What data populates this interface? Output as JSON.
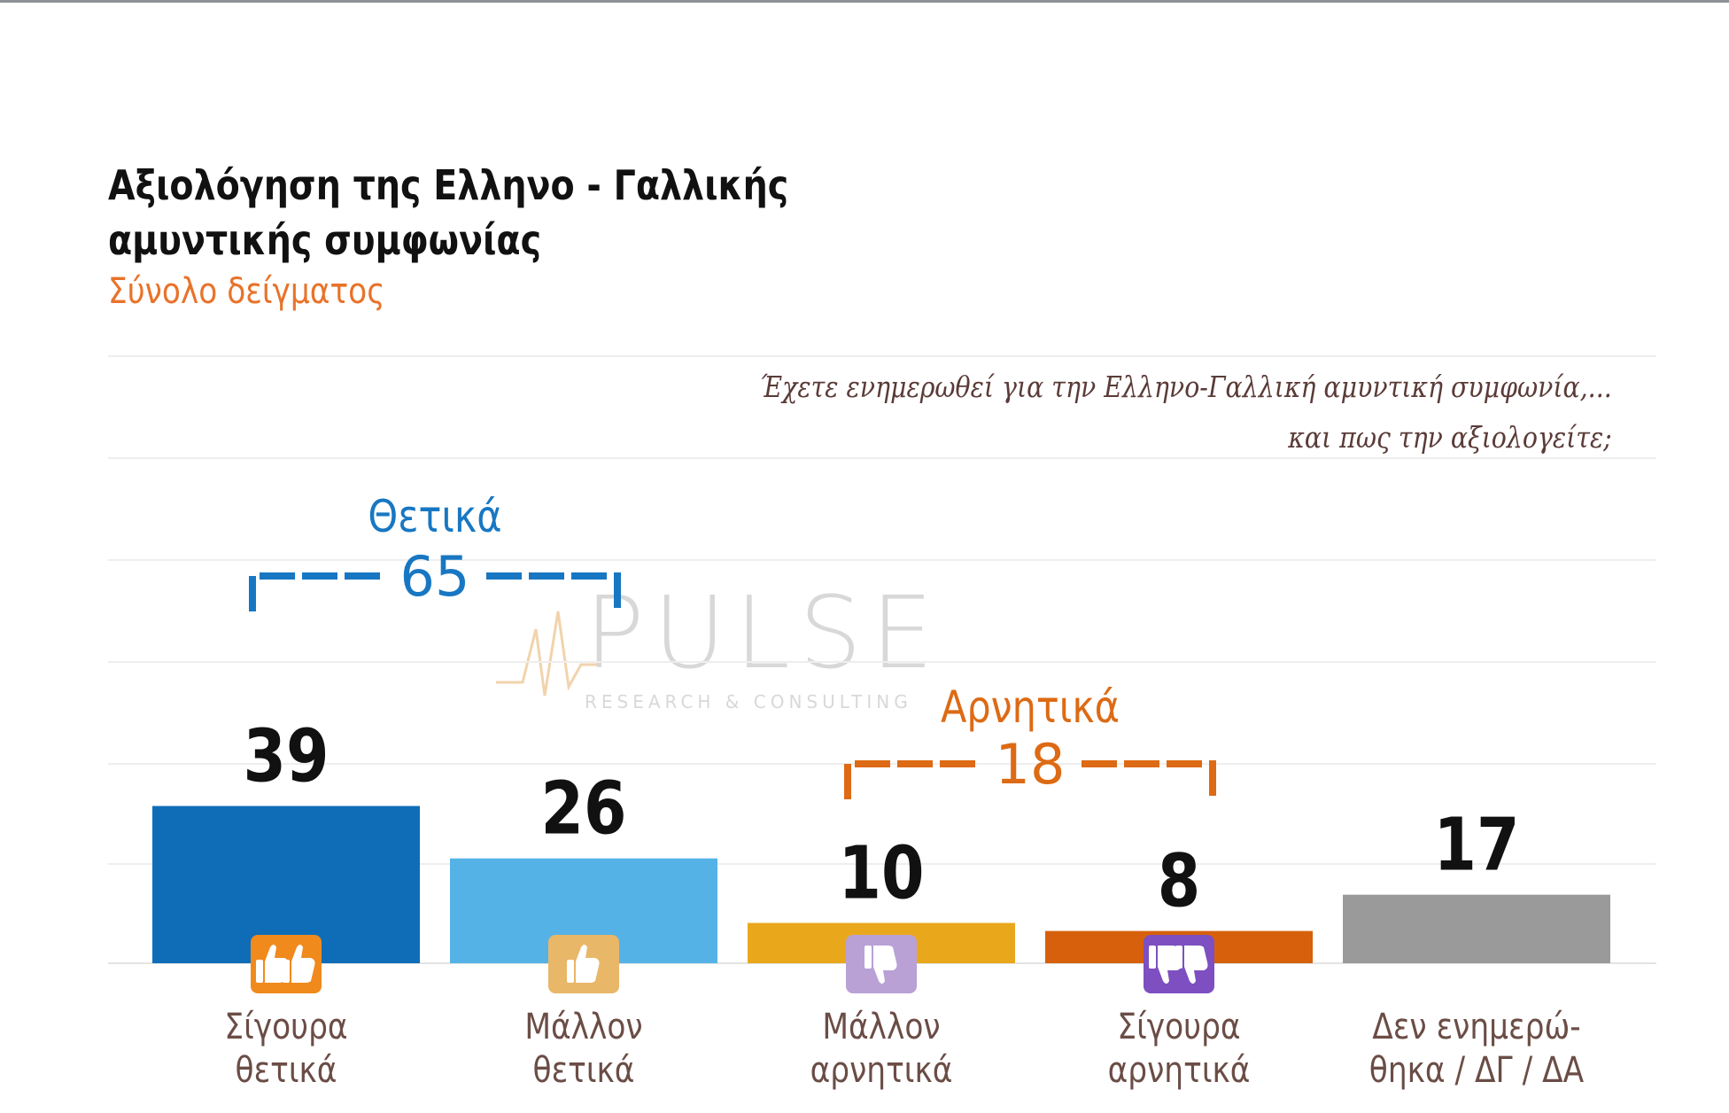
{
  "chart_data": {
    "type": "bar",
    "title_lines": [
      "Αξιολόγηση της Ελληνο - Γαλλικής",
      "αμυντικής συμφωνίας"
    ],
    "subtitle": "Σύνολο δείγματος",
    "question_lines": [
      "Έχετε ενημερωθεί για την Ελληνο-Γαλλική αμυντική συμφωνία,...",
      "και πως την αξιολογείτε;"
    ],
    "categories": [
      [
        "Σίγουρα",
        "θετικά"
      ],
      [
        "Μάλλον",
        "θετικά"
      ],
      [
        "Μάλλον",
        "αρνητικά"
      ],
      [
        "Σίγουρα",
        "αρνητικά"
      ],
      [
        "Δεν ενημερώ-",
        "θηκα / ΔΓ / ΔΑ"
      ]
    ],
    "values": [
      39,
      26,
      10,
      8,
      17
    ],
    "bar_colors": [
      "#0f6db8",
      "#55b2e6",
      "#e9a81c",
      "#d6600c",
      "#9a9a9a"
    ],
    "icons": [
      "two-thumbs-up-icon",
      "thumb-up-icon",
      "thumb-down-icon",
      "two-thumbs-down-icon",
      null
    ],
    "icon_colors": [
      "#f08a1d",
      "#e8b768",
      "#b9a1d6",
      "#7d4fc0",
      null
    ],
    "ylim": [
      0,
      60
    ],
    "grid": true,
    "groups": [
      {
        "label": "Θετικά",
        "value": 65,
        "color": "#1877c2",
        "from": 0,
        "to": 1
      },
      {
        "label": "Αρνητικά",
        "value": 18,
        "color": "#dd6a14",
        "from": 2,
        "to": 3
      }
    ]
  },
  "watermark": {
    "text": "PULSE",
    "sub": "RESEARCH & CONSULTING"
  }
}
